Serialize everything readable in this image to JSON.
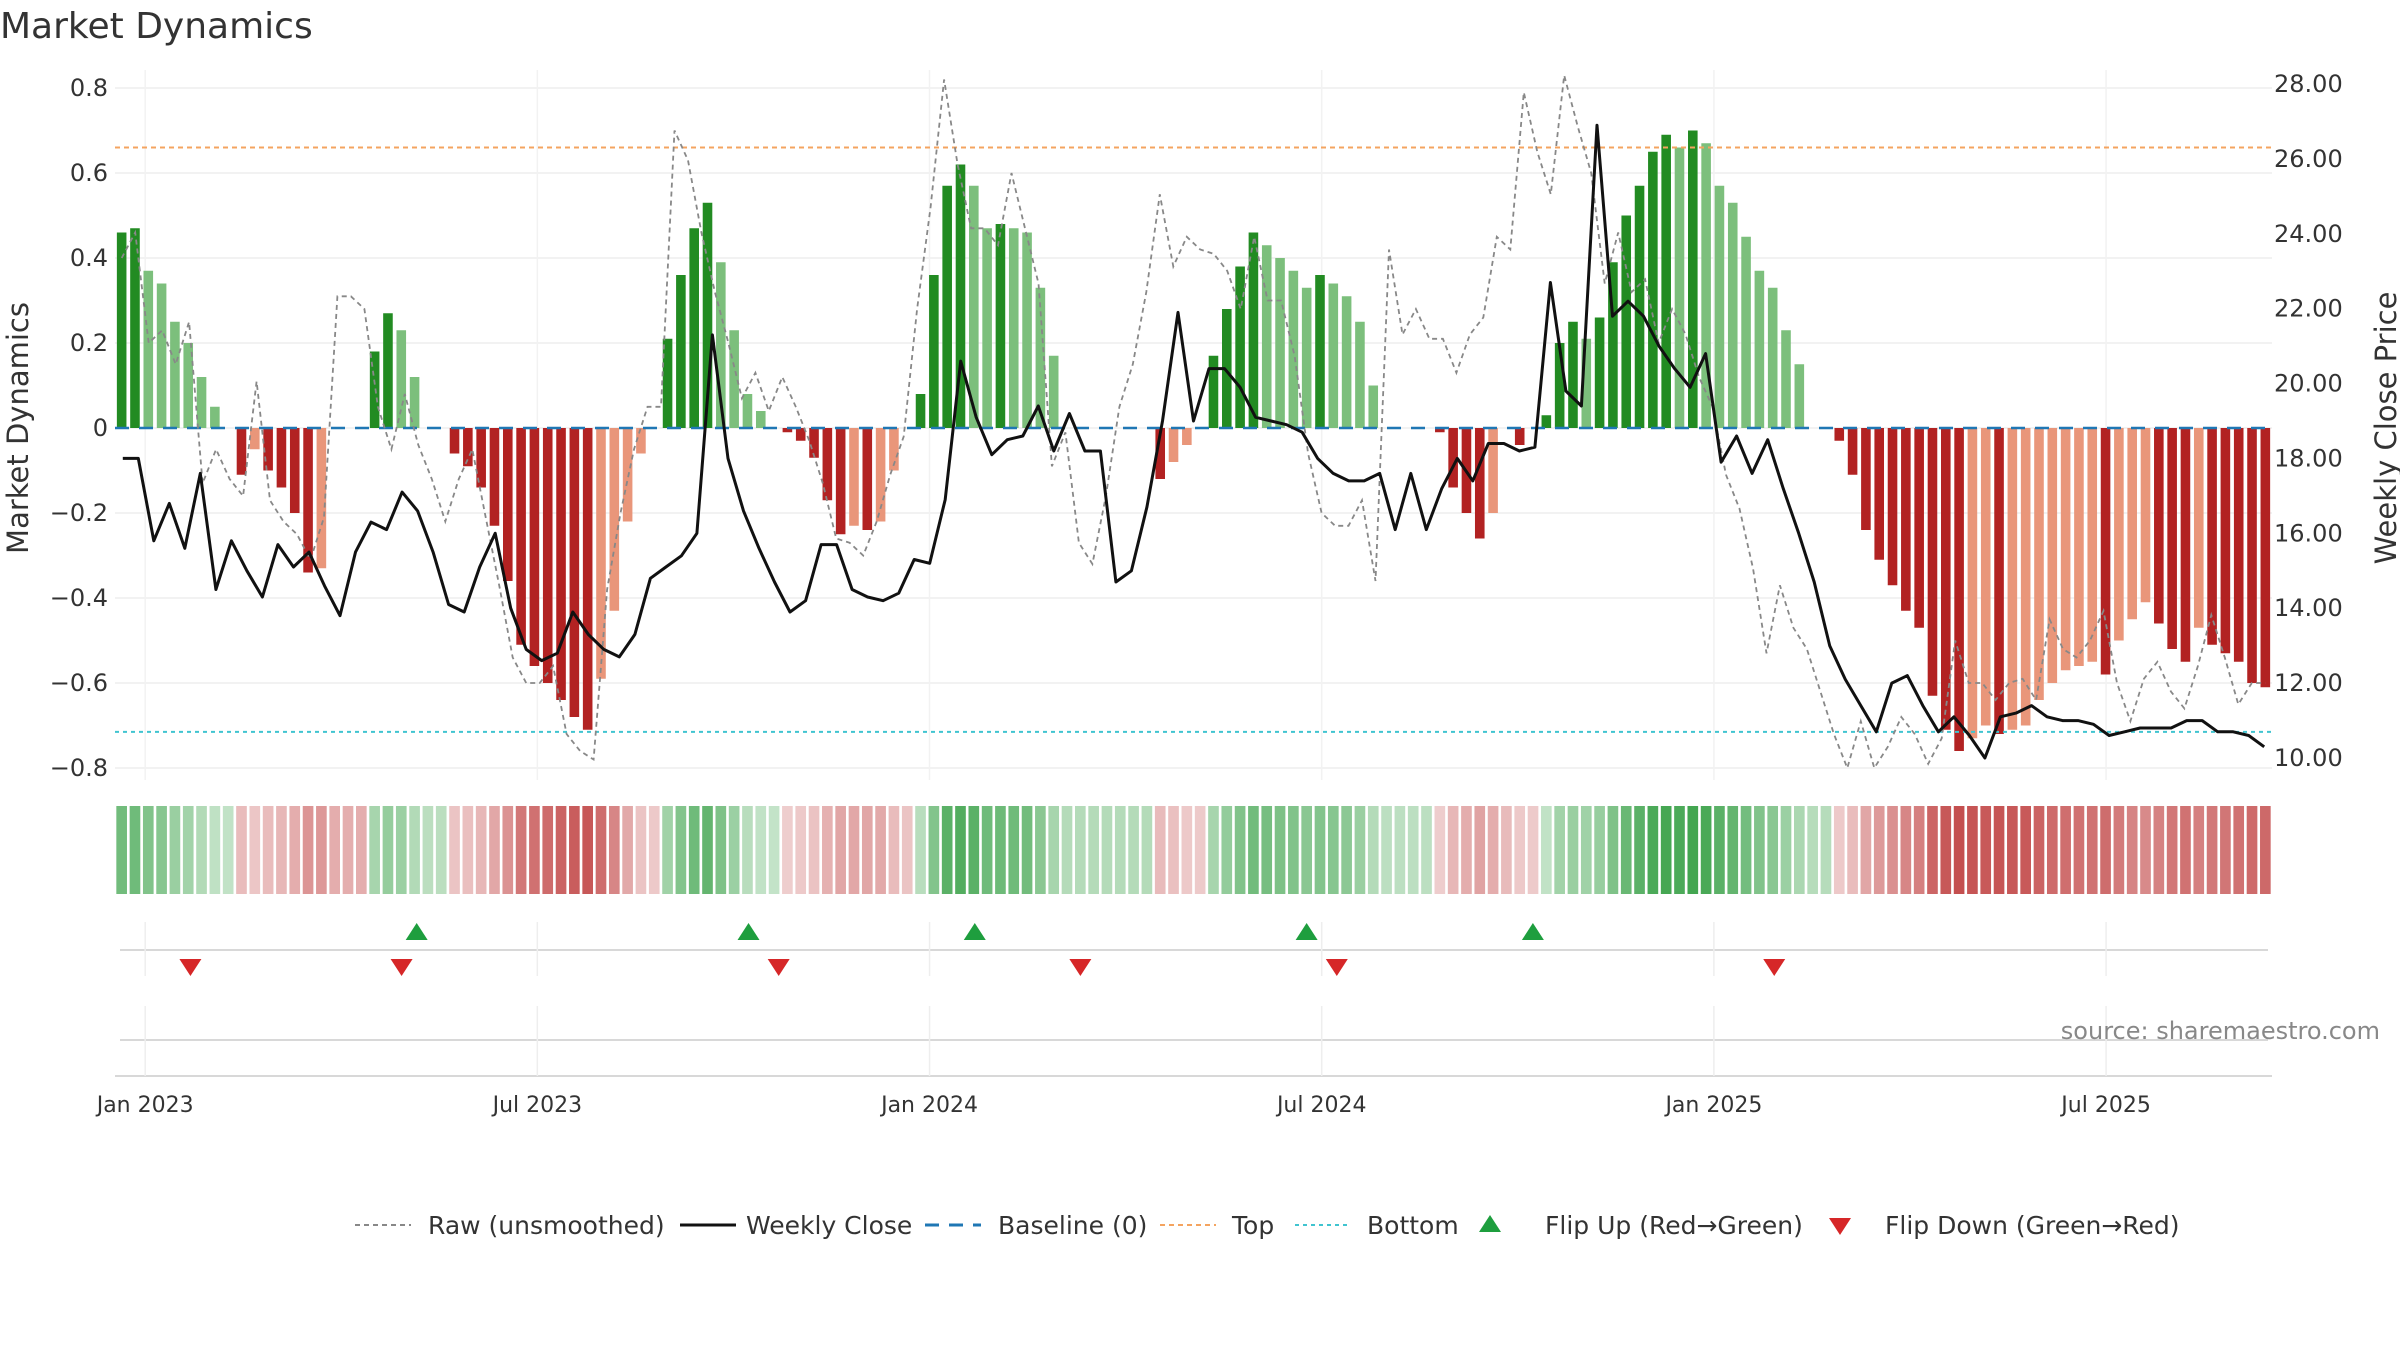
{
  "title": "Market Dynamics",
  "source": "source: sharemaestro.com",
  "colors": {
    "strong_green": "#228B22",
    "light_green": "#7CBF7C",
    "strong_red": "#B22222",
    "light_red": "#E9967A",
    "top_line": "#F4A460",
    "bottom_line": "#40C4D0",
    "baseline": "#1F77B4",
    "flip_up": "#1E9E3E",
    "flip_down": "#D62728",
    "close": "#111111",
    "raw": "#888888"
  },
  "chart_data": {
    "type": "bar",
    "title": "Market Dynamics",
    "ylabel_left": "Market Dynamics",
    "ylabel_right": "Weekly Close Price",
    "ylim_left": [
      -0.8,
      0.8
    ],
    "ylim_right": [
      10,
      28
    ],
    "yticks_left": [
      "0.8",
      "0.6",
      "0.4",
      "0.2",
      "0",
      "−0.2",
      "−0.4",
      "−0.6",
      "−0.8"
    ],
    "yticks_right": [
      "28.00",
      "26.00",
      "24.00",
      "22.00",
      "20.00",
      "18.00",
      "16.00",
      "14.00",
      "12.00",
      "10.00"
    ],
    "xticks": [
      "Jan 2023",
      "Jul 2023",
      "Jan 2024",
      "Jul 2024",
      "Jan 2025",
      "Jul 2025"
    ],
    "x_tick_weeks": [
      0,
      26,
      52,
      78,
      104,
      130
    ],
    "x_start_week": -2,
    "x_end_week": 141,
    "top_level": 0.66,
    "bottom_level": -0.715,
    "baseline": 0,
    "dynamics": [
      0.46,
      0.47,
      0.37,
      0.34,
      0.25,
      0.2,
      0.12,
      0.05,
      0,
      -0.11,
      -0.05,
      -0.1,
      -0.14,
      -0.2,
      -0.34,
      -0.33,
      0,
      0,
      0,
      0.18,
      0.27,
      0.23,
      0.12,
      0,
      0,
      -0.06,
      -0.09,
      -0.14,
      -0.23,
      -0.36,
      -0.51,
      -0.56,
      -0.6,
      -0.64,
      -0.68,
      -0.71,
      -0.59,
      -0.43,
      -0.22,
      -0.06,
      0,
      0.21,
      0.36,
      0.47,
      0.53,
      0.39,
      0.23,
      0.08,
      0.04,
      0,
      -0.01,
      -0.03,
      -0.07,
      -0.17,
      -0.25,
      -0.23,
      -0.24,
      -0.22,
      -0.1,
      0,
      0.08,
      0.36,
      0.57,
      0.62,
      0.57,
      0.47,
      0.48,
      0.47,
      0.46,
      0.33,
      0.17,
      0,
      0,
      0,
      0,
      0,
      0,
      0,
      -0.12,
      -0.08,
      -0.04,
      0,
      0.17,
      0.28,
      0.38,
      0.46,
      0.43,
      0.4,
      0.37,
      0.33,
      0.36,
      0.34,
      0.31,
      0.25,
      0.1,
      0,
      0,
      0,
      0,
      -0.01,
      -0.14,
      -0.2,
      -0.26,
      -0.2,
      0,
      -0.04,
      0,
      0.03,
      0.2,
      0.25,
      0.21,
      0.26,
      0.39,
      0.5,
      0.57,
      0.65,
      0.69,
      0.66,
      0.7,
      0.67,
      0.57,
      0.53,
      0.45,
      0.37,
      0.33,
      0.23,
      0.15,
      0,
      0,
      -0.03,
      -0.11,
      -0.24,
      -0.31,
      -0.37,
      -0.43,
      -0.47,
      -0.63,
      -0.71,
      -0.76,
      -0.73,
      -0.7,
      -0.72,
      -0.71,
      -0.7,
      -0.64,
      -0.6,
      -0.57,
      -0.56,
      -0.55,
      -0.58,
      -0.5,
      -0.45,
      -0.41,
      -0.46,
      -0.52,
      -0.55,
      -0.47,
      -0.51,
      -0.53,
      -0.55,
      -0.6,
      -0.61
    ],
    "raw_unsmoothed": [
      0.4,
      0.46,
      0.2,
      0.23,
      0.15,
      0.25,
      -0.13,
      -0.05,
      -0.12,
      -0.16,
      0.11,
      -0.17,
      -0.22,
      -0.25,
      -0.31,
      -0.21,
      0.31,
      0.31,
      0.28,
      0.05,
      -0.05,
      0.08,
      -0.04,
      -0.12,
      -0.22,
      -0.12,
      -0.05,
      -0.21,
      -0.37,
      -0.54,
      -0.6,
      -0.6,
      -0.56,
      -0.72,
      -0.76,
      -0.78,
      -0.38,
      -0.2,
      -0.05,
      0.05,
      0.05,
      0.7,
      0.63,
      0.46,
      0.32,
      0.2,
      0.07,
      0.13,
      0.04,
      0.12,
      0.05,
      -0.03,
      -0.13,
      -0.26,
      -0.27,
      -0.3,
      -0.22,
      -0.11,
      -0.02,
      0.28,
      0.52,
      0.82,
      0.62,
      0.47,
      0.47,
      0.43,
      0.6,
      0.47,
      0.34,
      -0.09,
      -0.01,
      -0.27,
      -0.32,
      -0.16,
      0.05,
      0.15,
      0.32,
      0.55,
      0.38,
      0.45,
      0.42,
      0.41,
      0.37,
      0.28,
      0.45,
      0.3,
      0.3,
      0.17,
      -0.06,
      -0.2,
      -0.23,
      -0.23,
      -0.17,
      -0.36,
      0.42,
      0.22,
      0.28,
      0.21,
      0.21,
      0.13,
      0.22,
      0.26,
      0.45,
      0.42,
      0.79,
      0.65,
      0.55,
      0.83,
      0.71,
      0.6,
      0.34,
      0.46,
      0.32,
      0.35,
      0.2,
      0.28,
      0.22,
      0.12,
      0.05,
      -0.11,
      -0.19,
      -0.33,
      -0.53,
      -0.37,
      -0.47,
      -0.52,
      -0.62,
      -0.72,
      -0.8,
      -0.69,
      -0.8,
      -0.75,
      -0.68,
      -0.72,
      -0.79,
      -0.73,
      -0.5,
      -0.6,
      -0.6,
      -0.64,
      -0.6,
      -0.59,
      -0.64,
      -0.45,
      -0.52,
      -0.54,
      -0.5,
      -0.43,
      -0.6,
      -0.69,
      -0.59,
      -0.55,
      -0.62,
      -0.66,
      -0.56,
      -0.44,
      -0.54,
      -0.65,
      -0.6,
      -0.6
    ],
    "weekly_close": [
      18.0,
      18.0,
      15.8,
      16.8,
      15.6,
      17.6,
      14.5,
      15.8,
      15.0,
      14.3,
      15.7,
      15.1,
      15.5,
      14.6,
      13.8,
      15.5,
      16.3,
      16.1,
      17.1,
      16.6,
      15.5,
      14.1,
      13.9,
      15.1,
      16.0,
      14.0,
      12.9,
      12.6,
      12.8,
      13.9,
      13.3,
      12.9,
      12.7,
      13.3,
      14.8,
      15.1,
      15.4,
      16.0,
      21.3,
      18.0,
      16.6,
      15.6,
      14.7,
      13.9,
      14.2,
      15.7,
      15.7,
      14.5,
      14.3,
      14.2,
      14.4,
      15.3,
      15.2,
      16.9,
      20.6,
      19.1,
      18.1,
      18.5,
      18.6,
      19.4,
      18.2,
      19.2,
      18.2,
      18.2,
      14.7,
      15.0,
      16.7,
      19.0,
      21.9,
      19.0,
      20.4,
      20.4,
      19.9,
      19.1,
      19.0,
      18.9,
      18.7,
      18.0,
      17.6,
      17.4,
      17.4,
      17.6,
      16.1,
      17.6,
      16.1,
      17.2,
      18.0,
      17.4,
      18.4,
      18.4,
      18.2,
      18.3,
      22.7,
      19.8,
      19.4,
      26.9,
      21.8,
      22.2,
      21.8,
      21.0,
      20.4,
      19.9,
      20.8,
      17.9,
      18.6,
      17.6,
      18.5,
      17.2,
      16.0,
      14.7,
      13.0,
      12.1,
      11.4,
      10.7,
      12.0,
      12.2,
      11.4,
      10.7,
      11.1,
      10.6,
      10.0,
      11.1,
      11.2,
      11.4,
      11.1,
      11.0,
      11.0,
      10.9,
      10.6,
      10.7,
      10.8,
      10.8,
      10.8,
      11.0,
      11.0,
      10.7,
      10.7,
      10.6,
      10.3
    ],
    "flips_up_week": [
      18,
      40,
      55,
      77,
      92
    ],
    "flips_down_week": [
      3,
      17,
      42,
      62,
      79,
      108
    ],
    "legend": [
      "Raw (unsmoothed)",
      "Weekly Close",
      "Baseline (0)",
      "Top",
      "Bottom",
      "Flip Up (Red→Green)",
      "Flip Down (Green→Red)"
    ]
  }
}
